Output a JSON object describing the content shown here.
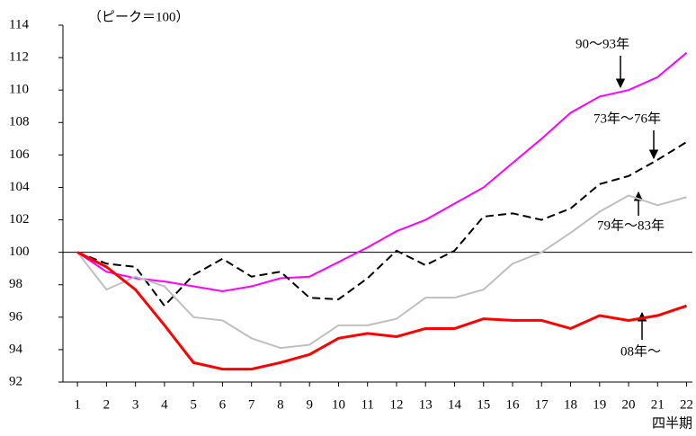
{
  "chart_data": {
    "type": "line",
    "annotation": "（ピーク＝100）",
    "x_label": "四半期",
    "x": [
      1,
      2,
      3,
      4,
      5,
      6,
      7,
      8,
      9,
      10,
      11,
      12,
      13,
      14,
      15,
      16,
      17,
      18,
      19,
      20,
      21,
      22
    ],
    "xlim": [
      0.5,
      22.2
    ],
    "xticks": [
      1,
      2,
      3,
      4,
      5,
      6,
      7,
      8,
      9,
      10,
      11,
      12,
      13,
      14,
      15,
      16,
      17,
      18,
      19,
      20,
      21,
      22
    ],
    "ylim": [
      92,
      114
    ],
    "yticks": [
      92,
      94,
      96,
      98,
      100,
      102,
      104,
      106,
      108,
      110,
      112,
      114
    ],
    "reference_line": 100,
    "series": [
      {
        "name": "90〜93年",
        "color": "#ff00ff",
        "dash": false,
        "values": [
          100,
          98.8,
          98.4,
          98.2,
          97.9,
          97.6,
          97.9,
          98.4,
          98.5,
          99.4,
          100.3,
          101.3,
          102.0,
          103.0,
          104.0,
          105.5,
          107.0,
          108.6,
          109.6,
          110.0,
          110.8,
          112.3
        ]
      },
      {
        "name": "73年〜76年",
        "color": "#000000",
        "dash": true,
        "values": [
          100,
          99.3,
          99.1,
          96.7,
          98.6,
          99.6,
          98.5,
          98.8,
          97.2,
          97.1,
          98.4,
          100.1,
          99.2,
          100.1,
          102.2,
          102.4,
          102.0,
          102.7,
          104.2,
          104.7,
          105.7,
          106.8
        ]
      },
      {
        "name": "79年〜83年",
        "color": "#bfbfbf",
        "dash": false,
        "values": [
          100,
          97.7,
          98.5,
          97.9,
          96.0,
          95.8,
          94.7,
          94.1,
          94.3,
          95.5,
          95.5,
          95.9,
          97.2,
          97.2,
          97.7,
          99.3,
          100.0,
          101.2,
          102.5,
          103.5,
          102.9,
          103.4
        ]
      },
      {
        "name": "08年〜",
        "color": "#ff0000",
        "dash": false,
        "values": [
          100,
          99.1,
          97.7,
          95.5,
          93.2,
          92.8,
          92.8,
          93.2,
          93.7,
          94.7,
          95.0,
          94.8,
          95.3,
          95.3,
          95.9,
          95.8,
          95.8,
          95.3,
          96.1,
          95.8,
          96.1,
          96.7
        ]
      }
    ]
  }
}
